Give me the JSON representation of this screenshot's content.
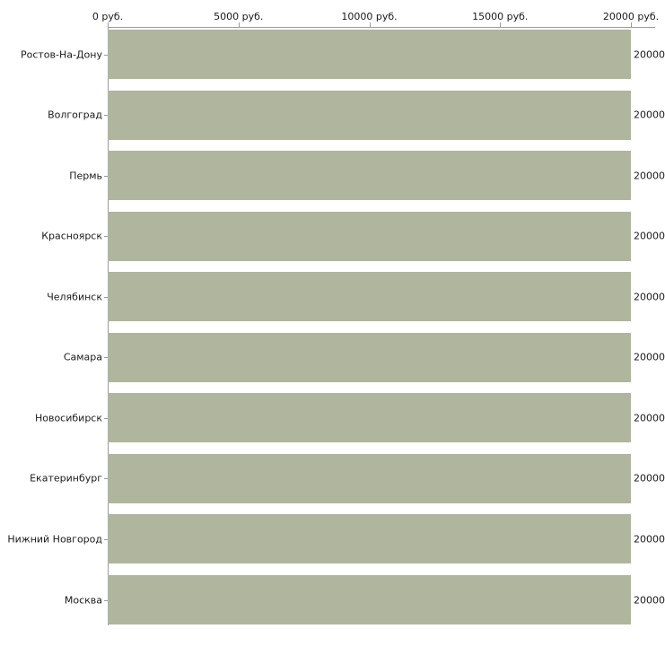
{
  "chart_data": {
    "type": "bar",
    "orientation": "horizontal",
    "title": "",
    "xlabel": "",
    "ylabel": "",
    "categories": [
      "Ростов-На-Дону",
      "Волгоград",
      "Пермь",
      "Красноярск",
      "Челябинск",
      "Самара",
      "Новосибирск",
      "Екатеринбург",
      "Нижний Новгород",
      "Москва"
    ],
    "values": [
      20000,
      20000,
      20000,
      20000,
      20000,
      20000,
      20000,
      20000,
      20000,
      20000
    ],
    "value_labels": [
      "20000",
      "20000",
      "20000",
      "20000",
      "20000",
      "20000",
      "20000",
      "20000",
      "20000",
      "20000"
    ],
    "x_ticks": [
      {
        "value": 0,
        "label": "0 руб."
      },
      {
        "value": 5000,
        "label": "5000 руб."
      },
      {
        "value": 10000,
        "label": "10000 руб."
      },
      {
        "value": 15000,
        "label": "15000 руб."
      },
      {
        "value": 20000,
        "label": "20000 руб."
      }
    ],
    "xlim": [
      0,
      20000
    ],
    "grid": false,
    "legend": false,
    "axis_labels_position": "top",
    "bar_color": "#b0b59d",
    "axis_color": "#9b9b9b",
    "text_color": "#1a1a1a"
  }
}
